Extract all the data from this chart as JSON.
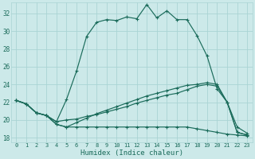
{
  "xlabel": "Humidex (Indice chaleur)",
  "x_ticks": [
    0,
    1,
    2,
    3,
    4,
    5,
    6,
    7,
    8,
    9,
    10,
    11,
    12,
    13,
    14,
    15,
    16,
    17,
    18,
    19,
    20,
    21,
    22,
    23
  ],
  "xlim": [
    -0.5,
    23.5
  ],
  "ylim": [
    17.5,
    33.2
  ],
  "y_ticks": [
    18,
    20,
    22,
    24,
    26,
    28,
    30,
    32
  ],
  "bg_color": "#cce9e9",
  "grid_color": "#aad4d4",
  "line_color": "#1a6b5a",
  "line1": [
    22.2,
    21.8,
    20.8,
    20.5,
    19.8,
    22.3,
    25.5,
    29.4,
    31.0,
    31.3,
    31.2,
    31.6,
    31.4,
    33.0,
    31.5,
    32.3,
    31.3,
    31.3,
    29.5,
    27.2,
    23.5,
    22.0,
    19.2,
    18.5
  ],
  "line2": [
    22.2,
    21.8,
    20.8,
    20.5,
    19.8,
    20.0,
    20.1,
    20.4,
    20.6,
    20.9,
    21.2,
    21.5,
    21.9,
    22.2,
    22.5,
    22.8,
    23.0,
    23.4,
    23.8,
    24.0,
    23.8,
    22.0,
    18.6,
    18.3
  ],
  "line3": [
    22.2,
    21.8,
    20.8,
    20.5,
    19.5,
    19.2,
    19.2,
    19.2,
    19.2,
    19.2,
    19.2,
    19.2,
    19.2,
    19.2,
    19.2,
    19.2,
    19.2,
    19.2,
    19.0,
    18.8,
    18.6,
    18.4,
    18.3,
    18.2
  ],
  "line4": [
    22.2,
    21.8,
    20.8,
    20.5,
    19.5,
    19.2,
    19.7,
    20.2,
    20.7,
    21.1,
    21.5,
    21.9,
    22.3,
    22.7,
    23.0,
    23.3,
    23.6,
    23.9,
    24.0,
    24.2,
    24.0,
    22.0,
    18.6,
    18.3
  ]
}
